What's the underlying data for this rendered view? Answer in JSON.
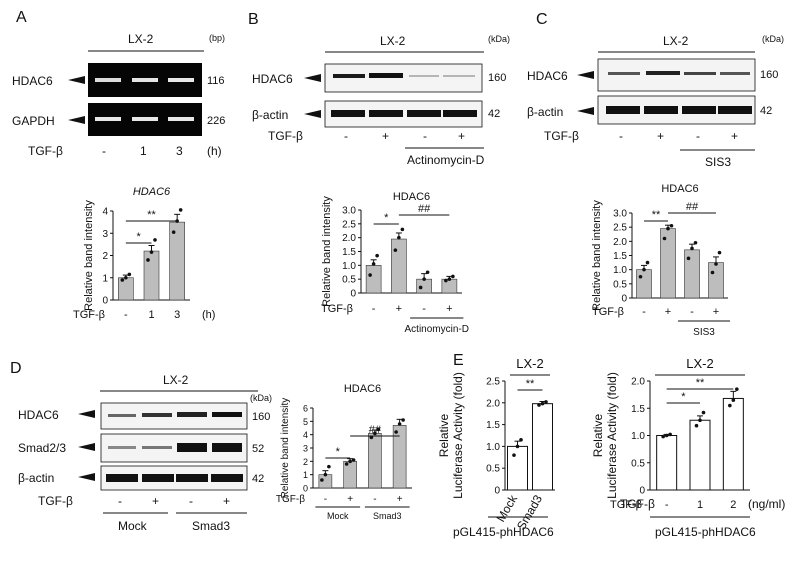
{
  "panels": {
    "A": {
      "label": "A",
      "cell_line": "LX-2",
      "size_unit": "(bp)",
      "genes": [
        "HDAC6",
        "GAPDH"
      ],
      "sizes": [
        "116",
        "226"
      ],
      "treatment_label": "TGF-β",
      "treatments": [
        "-",
        "1",
        "3"
      ],
      "unit": "(h)"
    },
    "B": {
      "label": "B",
      "cell_line": "LX-2",
      "size_unit": "(kDa)",
      "proteins": [
        "HDAC6",
        "β-actin"
      ],
      "sizes": [
        "160",
        "42"
      ],
      "treatment_label": "TGF-β",
      "treatments": [
        "-",
        "+",
        "-",
        "+"
      ],
      "group": "Actinomycin-D"
    },
    "C": {
      "label": "C",
      "cell_line": "LX-2",
      "size_unit": "(kDa)",
      "proteins": [
        "HDAC6",
        "β-actin"
      ],
      "sizes": [
        "160",
        "42"
      ],
      "treatment_label": "TGF-β",
      "treatments": [
        "-",
        "+",
        "-",
        "+"
      ],
      "group": "SIS3"
    },
    "D": {
      "label": "D",
      "cell_line": "LX-2",
      "size_unit": "(kDa)",
      "proteins": [
        "HDAC6",
        "Smad2/3",
        "β-actin"
      ],
      "sizes": [
        "160",
        "52",
        "42"
      ],
      "treatment_label": "TGF-β",
      "treatments": [
        "-",
        "+",
        "-",
        "+"
      ],
      "groups": [
        "Mock",
        "Smad3"
      ]
    },
    "E": {
      "label": "E",
      "left_cell_line": "LX-2",
      "right_cell_line": "LX-2",
      "left_group_label": "pGL415-phHDAC6",
      "right_group_label": "pGL415-phHDAC6",
      "right_treatment_label": "TGF-β",
      "right_unit": "(ng/ml)"
    }
  },
  "chart_data": [
    {
      "id": "A",
      "type": "bar",
      "title": "HDAC6",
      "ylabel": "Relative band intensity",
      "ylim": [
        0,
        4
      ],
      "yticks": [
        "0",
        "1",
        "2",
        "3",
        "4"
      ],
      "categories": [
        "-",
        "1",
        "3"
      ],
      "xprefix": "TGF-β",
      "xunit": "(h)",
      "values": [
        1.0,
        2.2,
        3.5
      ],
      "errors": [
        0.12,
        0.25,
        0.35
      ],
      "points": [
        [
          0.9,
          1.0,
          1.15
        ],
        [
          1.8,
          2.15,
          2.7
        ],
        [
          3.05,
          3.55,
          4.05
        ]
      ],
      "sig": [
        {
          "from": 0,
          "to": 1,
          "label": "*"
        },
        {
          "from": 0,
          "to": 2,
          "label": "**"
        }
      ]
    },
    {
      "id": "B",
      "type": "bar",
      "title": "HDAC6",
      "ylabel": "Relative band intensity",
      "ylim": [
        0,
        3
      ],
      "yticks": [
        "0",
        "0.5",
        "1.0",
        "1.5",
        "2.0",
        "2.5",
        "3.0"
      ],
      "categories": [
        "-",
        "+",
        "-",
        "+"
      ],
      "xprefix": "TGF-β",
      "group_label": "Actinomycin-D",
      "values": [
        1.0,
        1.95,
        0.5,
        0.5
      ],
      "errors": [
        0.2,
        0.22,
        0.2,
        0.1
      ],
      "points": [
        [
          0.65,
          1.05,
          1.35
        ],
        [
          1.55,
          2.0,
          2.3
        ],
        [
          0.2,
          0.5,
          0.75
        ],
        [
          0.45,
          0.5,
          0.6
        ]
      ],
      "sig": [
        {
          "from": 0,
          "to": 1,
          "label": "*"
        },
        {
          "from": 1,
          "to": 3,
          "label": "##"
        }
      ]
    },
    {
      "id": "C",
      "type": "bar",
      "title": "HDAC6",
      "ylabel": "Relative band intensity",
      "ylim": [
        0,
        3
      ],
      "yticks": [
        "0",
        "0.5",
        "1.0",
        "1.5",
        "2.0",
        "2.5",
        "3.0"
      ],
      "categories": [
        "-",
        "+",
        "-",
        "+"
      ],
      "xprefix": "TGF-β",
      "group_label": "SIS3",
      "values": [
        1.0,
        2.45,
        1.7,
        1.25
      ],
      "errors": [
        0.15,
        0.12,
        0.2,
        0.2
      ],
      "points": [
        [
          0.75,
          1.0,
          1.25
        ],
        [
          2.1,
          2.45,
          2.55
        ],
        [
          1.4,
          1.75,
          1.95
        ],
        [
          0.9,
          1.2,
          1.6
        ]
      ],
      "sig": [
        {
          "from": 0,
          "to": 1,
          "label": "**"
        },
        {
          "from": 1,
          "to": 3,
          "label": "##"
        }
      ]
    },
    {
      "id": "D",
      "type": "bar",
      "title": "HDAC6",
      "ylabel": "Relative band intensity",
      "ylim": [
        0,
        6
      ],
      "yticks": [
        "0",
        "1",
        "2",
        "3",
        "4",
        "5",
        "6"
      ],
      "categories": [
        "-",
        "+",
        "-",
        "+"
      ],
      "xprefix": "TGF-β",
      "groups": [
        "Mock",
        "Smad3"
      ],
      "values": [
        1.0,
        2.0,
        4.1,
        4.7
      ],
      "errors": [
        0.3,
        0.2,
        0.25,
        0.45
      ],
      "points": [
        [
          0.6,
          1.0,
          1.6
        ],
        [
          1.8,
          2.0,
          2.1
        ],
        [
          3.8,
          4.1,
          4.4
        ],
        [
          4.2,
          4.8,
          5.1
        ]
      ],
      "sig": [
        {
          "from": 0,
          "to": 1,
          "label": "*"
        },
        {
          "from": 1,
          "to": 3,
          "label": "##"
        }
      ]
    },
    {
      "id": "E-left",
      "type": "bar",
      "title": "LX-2",
      "ylabel": "Relative Luciferase Activity (fold)",
      "ylim": [
        0,
        2.5
      ],
      "yticks": [
        "0",
        "0.5",
        "1.0",
        "1.5",
        "2.0",
        "2.5"
      ],
      "categories": [
        "Mock",
        "Smad3"
      ],
      "values": [
        1.0,
        1.98
      ],
      "errors": [
        0.12,
        0.05
      ],
      "points": [
        [
          0.8,
          1.0,
          1.15
        ],
        [
          1.95,
          1.98,
          2.02
        ]
      ],
      "sig": [
        {
          "from": 0,
          "to": 1,
          "label": "**"
        }
      ]
    },
    {
      "id": "E-right",
      "type": "bar",
      "title": "LX-2",
      "ylabel": "Relative Luciferase Activity (fold)",
      "ylim": [
        0,
        2.0
      ],
      "yticks": [
        "0",
        "0.5",
        "1.0",
        "1.5",
        "2.0"
      ],
      "categories": [
        "-",
        "1",
        "2"
      ],
      "xprefix": "TGF-β",
      "xunit": "(ng/ml)",
      "values": [
        1.0,
        1.28,
        1.68
      ],
      "errors": [
        0.02,
        0.08,
        0.13
      ],
      "points": [
        [
          0.98,
          1.0,
          1.02
        ],
        [
          1.18,
          1.28,
          1.42
        ],
        [
          1.55,
          1.65,
          1.85
        ]
      ],
      "sig": [
        {
          "from": 0,
          "to": 1,
          "label": "*"
        },
        {
          "from": 0,
          "to": 2,
          "label": "**"
        }
      ]
    }
  ]
}
